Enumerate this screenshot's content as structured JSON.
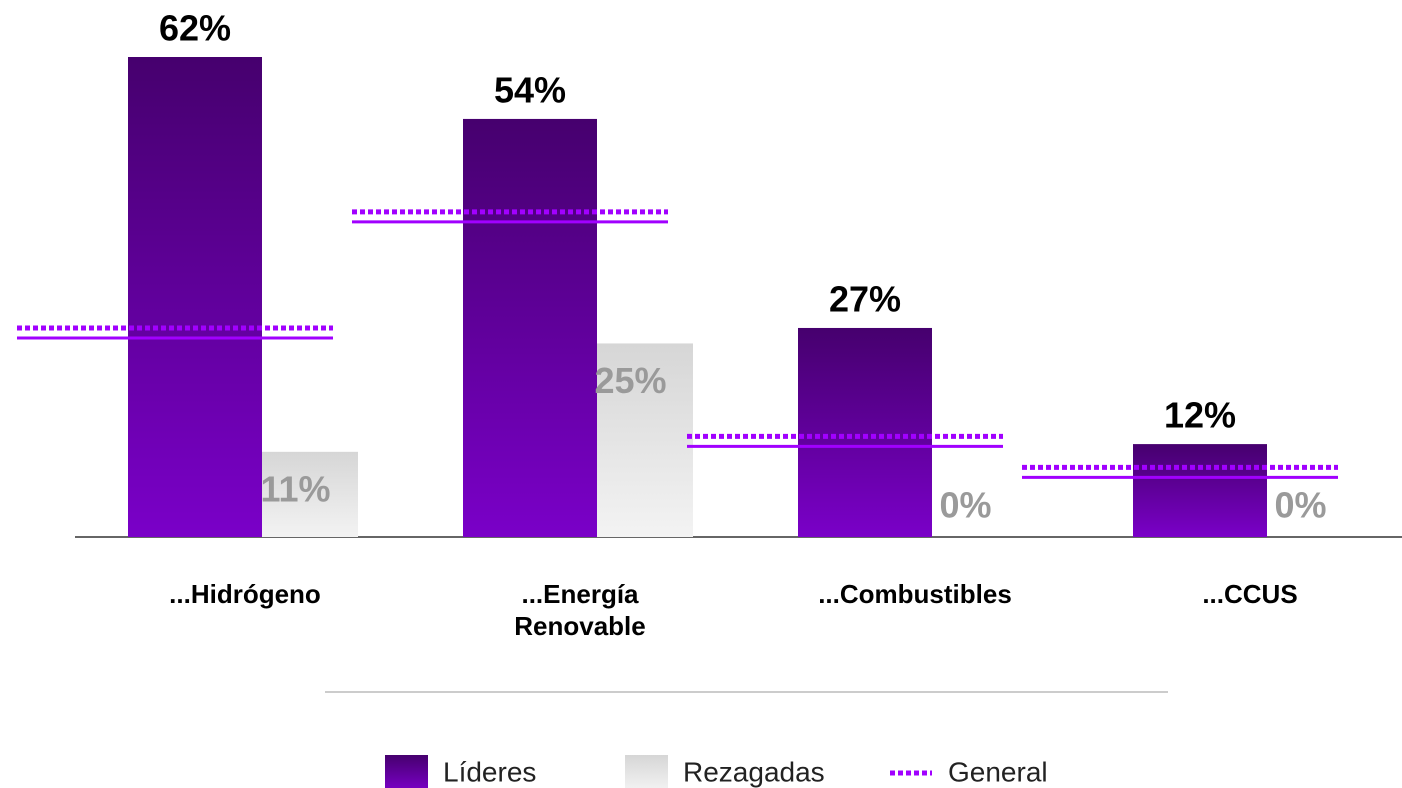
{
  "chart_data": {
    "type": "bar",
    "categories": [
      "...Hidrógeno",
      "...Energía Renovable",
      "...Combustibles",
      "...CCUS"
    ],
    "series": [
      {
        "name": "Líderes",
        "color": "#6a00b0",
        "values": [
          62,
          54,
          27,
          12
        ],
        "value_labels": [
          "62%",
          "54%",
          "27%",
          "12%"
        ]
      },
      {
        "name": "Rezagadas",
        "color": "#e0e0e0",
        "values": [
          11,
          25,
          0,
          0
        ],
        "value_labels": [
          "11%",
          "25%",
          "0%",
          "0%"
        ]
      },
      {
        "name": "General",
        "color": "#a100ff",
        "values": [
          27,
          42,
          13,
          9
        ]
      }
    ]
  }
}
